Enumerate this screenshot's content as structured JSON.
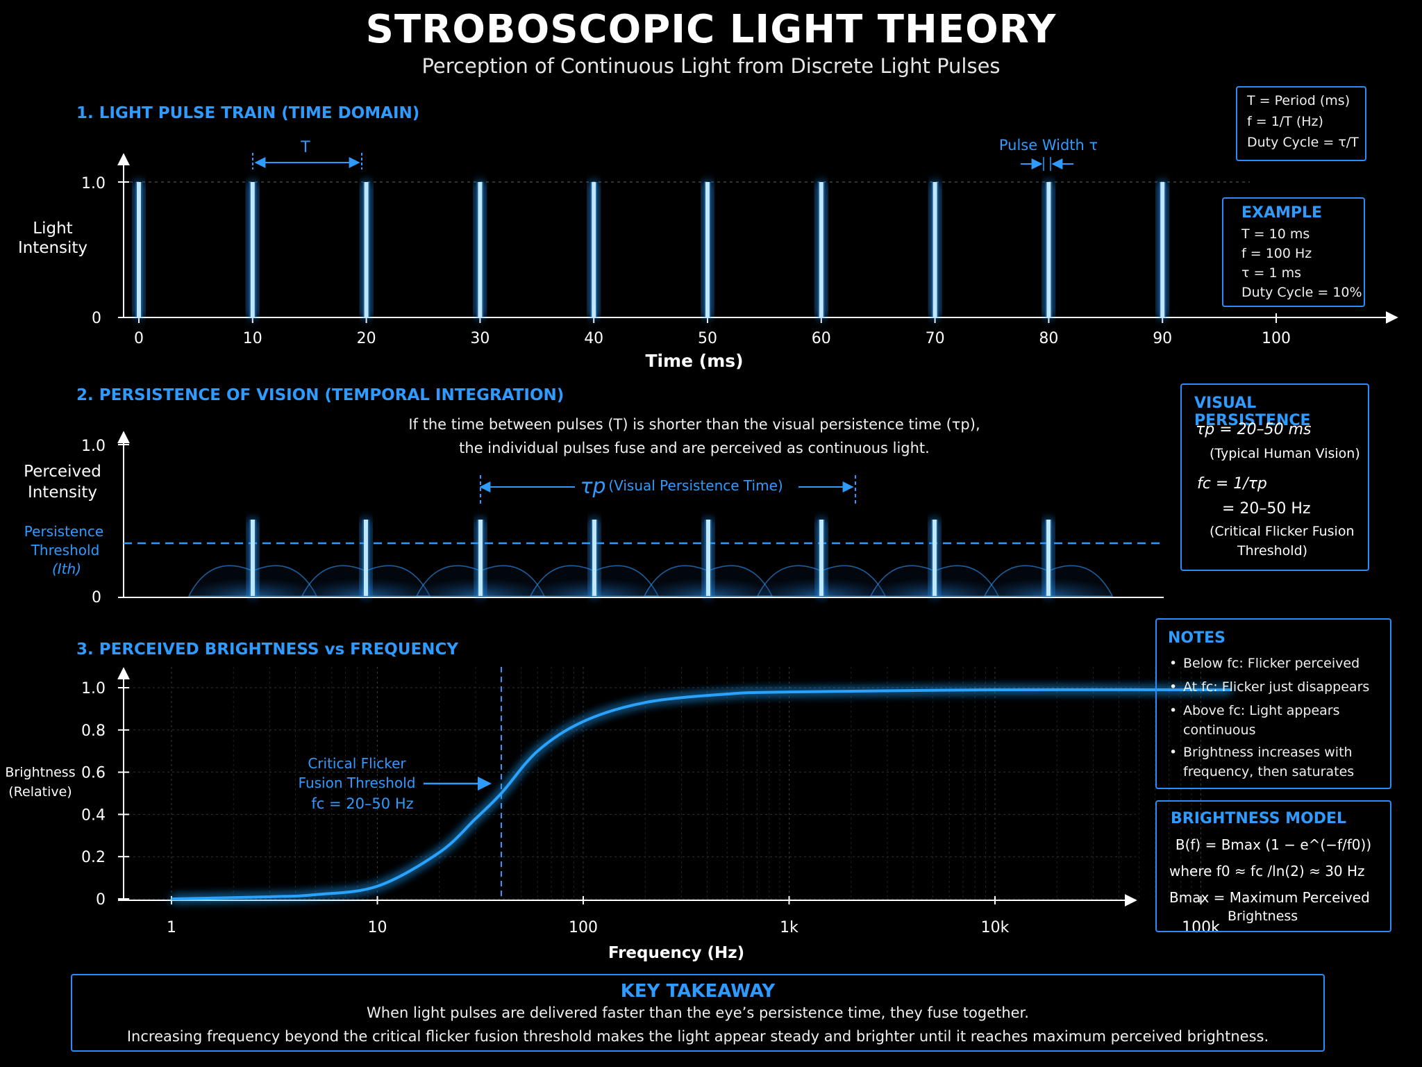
{
  "title": "STROBOSCOPIC LIGHT THEORY",
  "subtitle": "Perception of Continuous Light from Discrete Light Pulses",
  "colors": {
    "accent": "#2f9bff",
    "pulse": "#8fd8ff",
    "background": "#000000"
  },
  "section1": {
    "heading": "1. LIGHT PULSE TRAIN (TIME DOMAIN)",
    "ylabel_line1": "Light",
    "ylabel_line2": "Intensity",
    "xlabel": "Time (ms)",
    "y_tick_top": "1.0",
    "y_tick_zero": "0",
    "period_label": "T",
    "pulse_width_label": "Pulse Width τ",
    "x_ticks": [
      "0",
      "10",
      "20",
      "30",
      "40",
      "50",
      "60",
      "70",
      "80",
      "90",
      "100"
    ],
    "pulses_ms": [
      0,
      10,
      20,
      30,
      40,
      50,
      60,
      70,
      80,
      90
    ],
    "definitions": {
      "line1": "T = Period (ms)",
      "line2": "f = 1/T (Hz)",
      "line3": "Duty Cycle = τ/T"
    },
    "example": {
      "heading": "EXAMPLE",
      "line1": "T = 10 ms",
      "line2": "f = 100 Hz",
      "line3": "τ = 1 ms",
      "line4": "Duty Cycle = 10%"
    }
  },
  "section2": {
    "heading": "2. PERSISTENCE OF VISION (TEMPORAL INTEGRATION)",
    "explanation_line1": "If the time between pulses (T) is shorter than the visual persistence time (τp),",
    "explanation_line2": "the individual pulses fuse and are perceived as continuous light.",
    "ylabel_line1": "Perceived",
    "ylabel_line2": "Intensity",
    "threshold_line1": "Persistence",
    "threshold_line2": "Threshold",
    "threshold_line3": "(Ith)",
    "y_tick_top": "1.0",
    "y_tick_zero": "0",
    "persistence_span_label": "τp",
    "persistence_span_desc": "(Visual Persistence Time)",
    "visual_persistence": {
      "heading": "VISUAL PERSISTENCE",
      "line1": "τp = 20–50 ms",
      "line2": "(Typical Human Vision)",
      "line3": "fc = 1/τp",
      "line4": "= 20–50 Hz",
      "line5": "(Critical Flicker Fusion",
      "line6": "Threshold)"
    }
  },
  "section3": {
    "heading": "3. PERCEIVED BRIGHTNESS vs FREQUENCY",
    "ylabel_line1": "Brightness",
    "ylabel_line2": "(Relative)",
    "xlabel": "Frequency (Hz)",
    "annotation_line1": "Critical Flicker",
    "annotation_line2": "Fusion Threshold",
    "annotation_line3": "fc = 20–50 Hz",
    "notes": {
      "heading": "NOTES",
      "item1": "Below fc: Flicker perceived",
      "item2": "At fc: Flicker just disappears",
      "item3a": "Above fc: Light appears",
      "item3b": "continuous",
      "item4a": "Brightness increases with",
      "item4b": "frequency, then saturates"
    },
    "model": {
      "heading": "BRIGHTNESS MODEL",
      "formula": "B(f) = Bmax (1 − e^(−f/f0))",
      "where": "where f0 ≈ fc /ln(2)  ≈ 30 Hz",
      "bmax_line1": "Bmax = Maximum Perceived",
      "bmax_line2": "Brightness"
    }
  },
  "chart_data": {
    "type": "line",
    "title": "3. PERCEIVED BRIGHTNESS vs FREQUENCY",
    "xlabel": "Frequency (Hz)",
    "ylabel": "Brightness (Relative)",
    "x_scale": "log",
    "xlim": [
      1,
      140000
    ],
    "ylim": [
      0,
      1.0
    ],
    "x_tick_labels": [
      "1",
      "10",
      "100",
      "1k",
      "10k",
      "100k"
    ],
    "x_tick_values": [
      1,
      10,
      100,
      1000,
      10000,
      100000
    ],
    "y_tick_labels": [
      "0",
      "0.2",
      "0.4",
      "0.6",
      "0.8",
      "1.0"
    ],
    "y_tick_values": [
      0,
      0.2,
      0.4,
      0.6,
      0.8,
      1.0
    ],
    "grid": true,
    "critical_frequency_marker": 40,
    "x": [
      1,
      3,
      5,
      10,
      20,
      30,
      40,
      60,
      100,
      200,
      500,
      1000,
      10000,
      140000
    ],
    "y": [
      0.0,
      0.01,
      0.02,
      0.06,
      0.22,
      0.38,
      0.5,
      0.7,
      0.84,
      0.93,
      0.97,
      0.98,
      0.99,
      0.99
    ]
  },
  "takeaway": {
    "heading": "KEY TAKEAWAY",
    "line1": "When light pulses are delivered faster than the eye’s persistence time, they fuse together.",
    "line2": "Increasing frequency beyond the critical flicker fusion threshold makes the light appear steady and brighter until it reaches maximum perceived brightness."
  }
}
